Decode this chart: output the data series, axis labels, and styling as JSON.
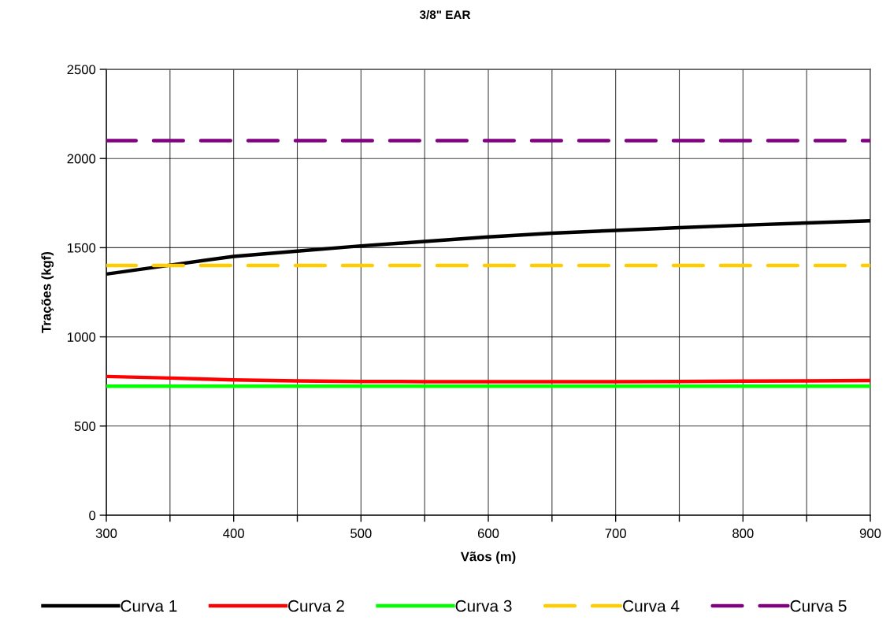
{
  "chart_data": {
    "type": "line",
    "title": "3/8\" EAR",
    "xlabel": "Vãos (m)",
    "ylabel": "Trações (kgf)",
    "x": [
      300,
      350,
      400,
      450,
      500,
      550,
      600,
      650,
      700,
      750,
      800,
      850,
      900
    ],
    "series": [
      {
        "name": "Curva 1",
        "color": "#000000",
        "line_style": "solid",
        "values": [
          1352,
          1402,
          1451,
          1481,
          1510,
          1535,
          1560,
          1581,
          1597,
          1612,
          1626,
          1639,
          1651
        ]
      },
      {
        "name": "Curva 2",
        "color": "#ff0000",
        "line_style": "solid",
        "values": [
          778,
          769,
          759,
          753,
          750,
          749,
          749,
          749,
          749,
          750,
          752,
          753,
          755
        ]
      },
      {
        "name": "Curva 3",
        "color": "#00ff00",
        "line_style": "solid",
        "values": [
          723,
          723,
          723,
          723,
          723,
          723,
          723,
          723,
          723,
          723,
          723,
          723,
          723
        ]
      },
      {
        "name": "Curva 4",
        "color": "#ffcc00",
        "line_style": "dashed",
        "values": [
          1400,
          1400,
          1400,
          1400,
          1400,
          1400,
          1400,
          1400,
          1400,
          1400,
          1400,
          1400,
          1400
        ]
      },
      {
        "name": "Curva 5",
        "color": "#800080",
        "line_style": "dashed",
        "values": [
          2100,
          2100,
          2100,
          2100,
          2100,
          2100,
          2100,
          2100,
          2100,
          2100,
          2100,
          2100,
          2100
        ]
      }
    ],
    "xlim": [
      300,
      900
    ],
    "ylim": [
      0,
      2500
    ],
    "xticks": [
      300,
      {
        "value": 350,
        "label": null
      },
      400,
      {
        "value": 450,
        "label": null
      },
      500,
      {
        "value": 550,
        "label": null
      },
      600,
      {
        "value": 650,
        "label": null
      },
      700,
      {
        "value": 750,
        "label": null
      },
      800,
      {
        "value": 850,
        "label": null
      },
      900
    ],
    "yticks": [
      0,
      500,
      1000,
      1500,
      2000,
      2500
    ],
    "grid": true,
    "legend": "bottom"
  }
}
